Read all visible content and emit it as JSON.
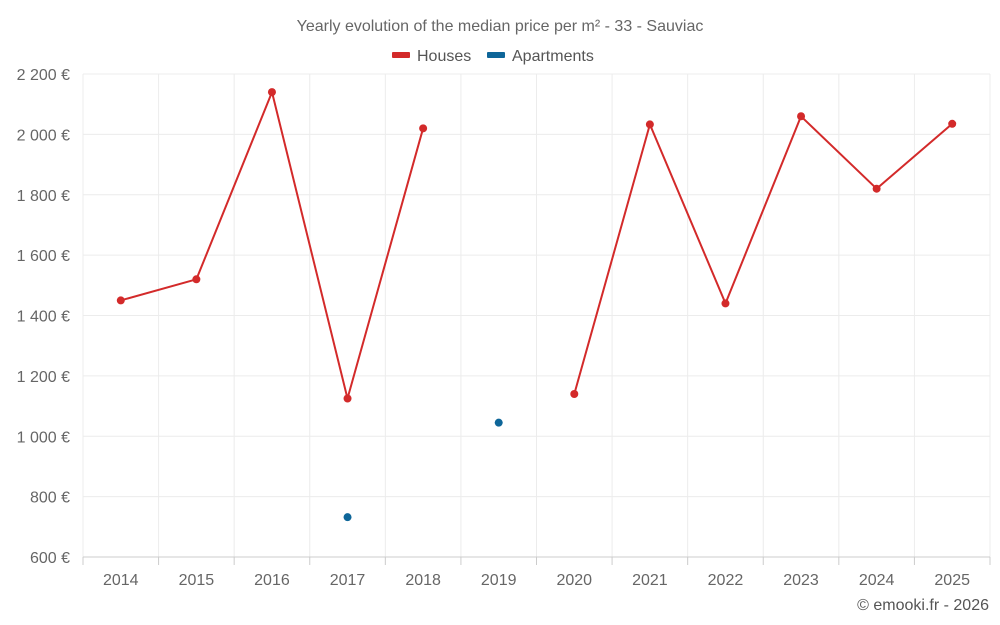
{
  "chart_data": {
    "type": "line",
    "title": "Yearly evolution of the median price per m² - 33 - Sauviac",
    "categories": [
      "2014",
      "2015",
      "2016",
      "2017",
      "2018",
      "2019",
      "2020",
      "2021",
      "2022",
      "2023",
      "2024",
      "2025"
    ],
    "y_tick_labels": [
      "600 €",
      "800 €",
      "1 000 €",
      "1 200 €",
      "1 400 €",
      "1 600 €",
      "1 800 €",
      "2 000 €",
      "2 200 €"
    ],
    "y_ticks": [
      600,
      800,
      1000,
      1200,
      1400,
      1600,
      1800,
      2000,
      2200
    ],
    "ylim": [
      600,
      2200
    ],
    "grid": true,
    "legend_position": "top-center",
    "series": [
      {
        "name": "Houses",
        "color": "#d32a2a",
        "values": [
          1450,
          1520,
          2140,
          1125,
          2020,
          null,
          1140,
          2033,
          1440,
          2060,
          1820,
          2035
        ]
      },
      {
        "name": "Apartments",
        "color": "#0e6699",
        "values": [
          null,
          null,
          null,
          732,
          null,
          1045,
          null,
          null,
          null,
          null,
          null,
          null
        ]
      }
    ],
    "credit": "© emooki.fr - 2026"
  }
}
